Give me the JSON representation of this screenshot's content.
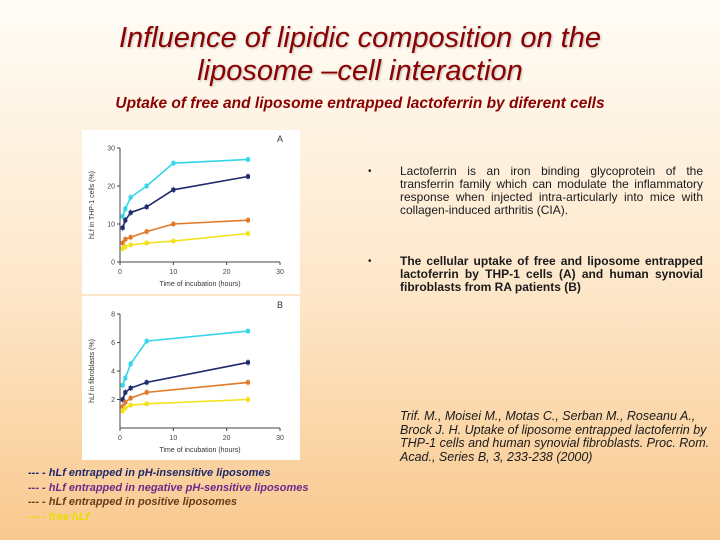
{
  "title_line1": "Influence of lipidic composition on the",
  "title_line2": "liposome –cell interaction",
  "subtitle": "Uptake of free and liposome  entrapped lactoferrin by diferent cells",
  "colors": {
    "title": "#8b0000",
    "cyan": "#33d6e8",
    "navy": "#1f2a6b",
    "orange": "#e07a28",
    "yellow": "#f3e21a",
    "legend_navy": "#1f2a6b",
    "legend_purple": "#6b2a8b",
    "legend_brown": "#6b3a1a",
    "legend_yellow": "#e8dc00"
  },
  "bullets": [
    "Lactoferrin is an iron binding glycoprotein of the transferrin family which  can modulate the inflammatory response when injected intra-articularly into mice with collagen-induced arthritis (CIA).",
    "The cellular uptake of  free and liposome entrapped lactoferrin by THP-1 cells (A) and human synovial fibroblasts from RA patients (B)"
  ],
  "citation": "Trif. M., Moisei M., Motas C., Serban M., Roseanu A., Brock J. H. Uptake of liposome entrapped lactoferrin by THP-1 cells  and human synovial fibroblasts. Proc. Rom. Acad., Series B, 3, 233-238 (2000)",
  "legend": [
    "--- - hLf entrapped in pH-insensitive liposomes",
    "--- - hLf entrapped in negative pH-sensitive liposomes",
    "--- - hLf entrapped in positive liposomes",
    "--- - free hLf"
  ],
  "chart_data": [
    {
      "type": "line",
      "panel_label": "A",
      "xlabel": "Time of incubation (hours)",
      "ylabel": "hLf in THP-1 cells (%)",
      "xlim": [
        0,
        30
      ],
      "ylim": [
        0,
        30
      ],
      "x_ticks": [
        "0",
        "10",
        "20",
        "30"
      ],
      "y_ticks": [
        "0",
        "10",
        "20",
        "30"
      ],
      "x": [
        0.5,
        1,
        2,
        5,
        10,
        24
      ],
      "series": [
        {
          "color": "#33d6e8",
          "values": [
            12,
            14,
            17,
            20,
            26,
            27
          ]
        },
        {
          "color": "#1f2a6b",
          "values": [
            9,
            11,
            13,
            14.5,
            19,
            22.5
          ]
        },
        {
          "color": "#e07a28",
          "values": [
            5,
            6,
            6.5,
            8,
            10,
            11
          ]
        },
        {
          "color": "#f3e21a",
          "values": [
            3.5,
            4,
            4.5,
            5,
            5.5,
            7.5
          ]
        }
      ]
    },
    {
      "type": "line",
      "panel_label": "B",
      "xlabel": "Time of incubation (hours)",
      "ylabel": "hLf in fibroblasts (%)",
      "xlim": [
        0,
        30
      ],
      "ylim": [
        0,
        8
      ],
      "x_ticks": [
        "0",
        "10",
        "20",
        "30"
      ],
      "y_ticks": [
        "2",
        "4",
        "6",
        "8"
      ],
      "x": [
        0.5,
        1,
        2,
        5,
        24
      ],
      "series": [
        {
          "color": "#33d6e8",
          "values": [
            3,
            3.5,
            4.5,
            6.1,
            6.8
          ]
        },
        {
          "color": "#1f2a6b",
          "values": [
            2,
            2.5,
            2.8,
            3.2,
            4.6
          ]
        },
        {
          "color": "#e07a28",
          "values": [
            1.5,
            1.8,
            2.1,
            2.5,
            3.2
          ]
        },
        {
          "color": "#f3e21a",
          "values": [
            1.2,
            1.4,
            1.6,
            1.7,
            2
          ]
        }
      ]
    }
  ]
}
